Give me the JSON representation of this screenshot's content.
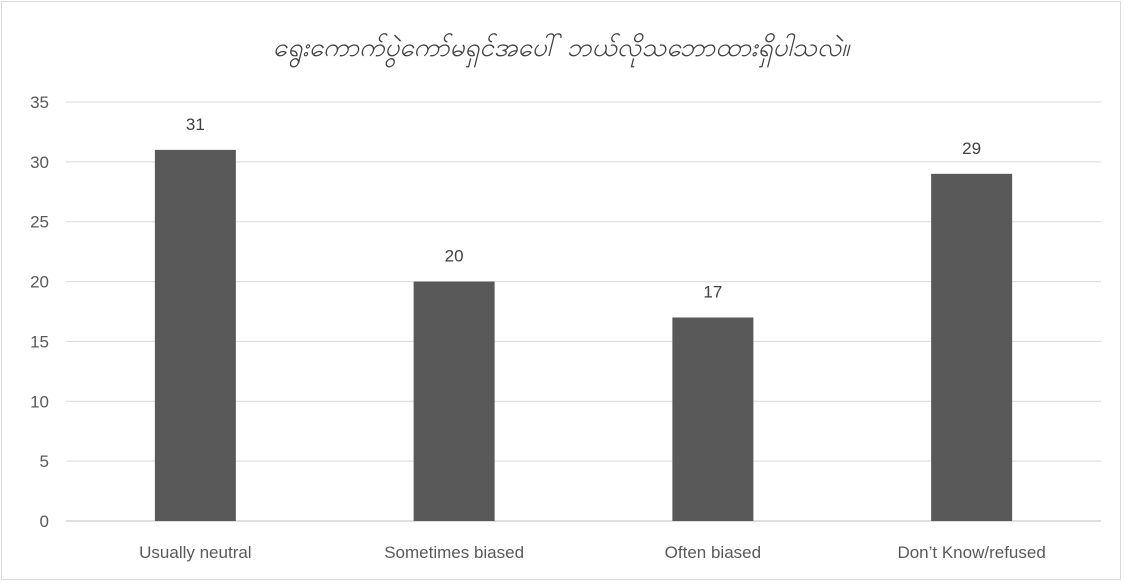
{
  "chart_data": {
    "type": "bar",
    "title": "ရွေးကောက်ပွဲကော်မရှင်အပေါ် ဘယ်လိုသဘောထားရှိပါသလဲ။",
    "categories": [
      "Usually neutral",
      "Sometimes biased",
      "Often biased",
      "Don’t Know/refused"
    ],
    "values": [
      31,
      20,
      17,
      29
    ],
    "ylim": [
      0,
      35
    ],
    "yticks": [
      0,
      5,
      10,
      15,
      20,
      25,
      30,
      35
    ],
    "grid": true,
    "data_labels": true,
    "colors": {
      "bar": "#595959",
      "grid": "#d9d9d9",
      "axis": "#bfbfbf"
    }
  }
}
